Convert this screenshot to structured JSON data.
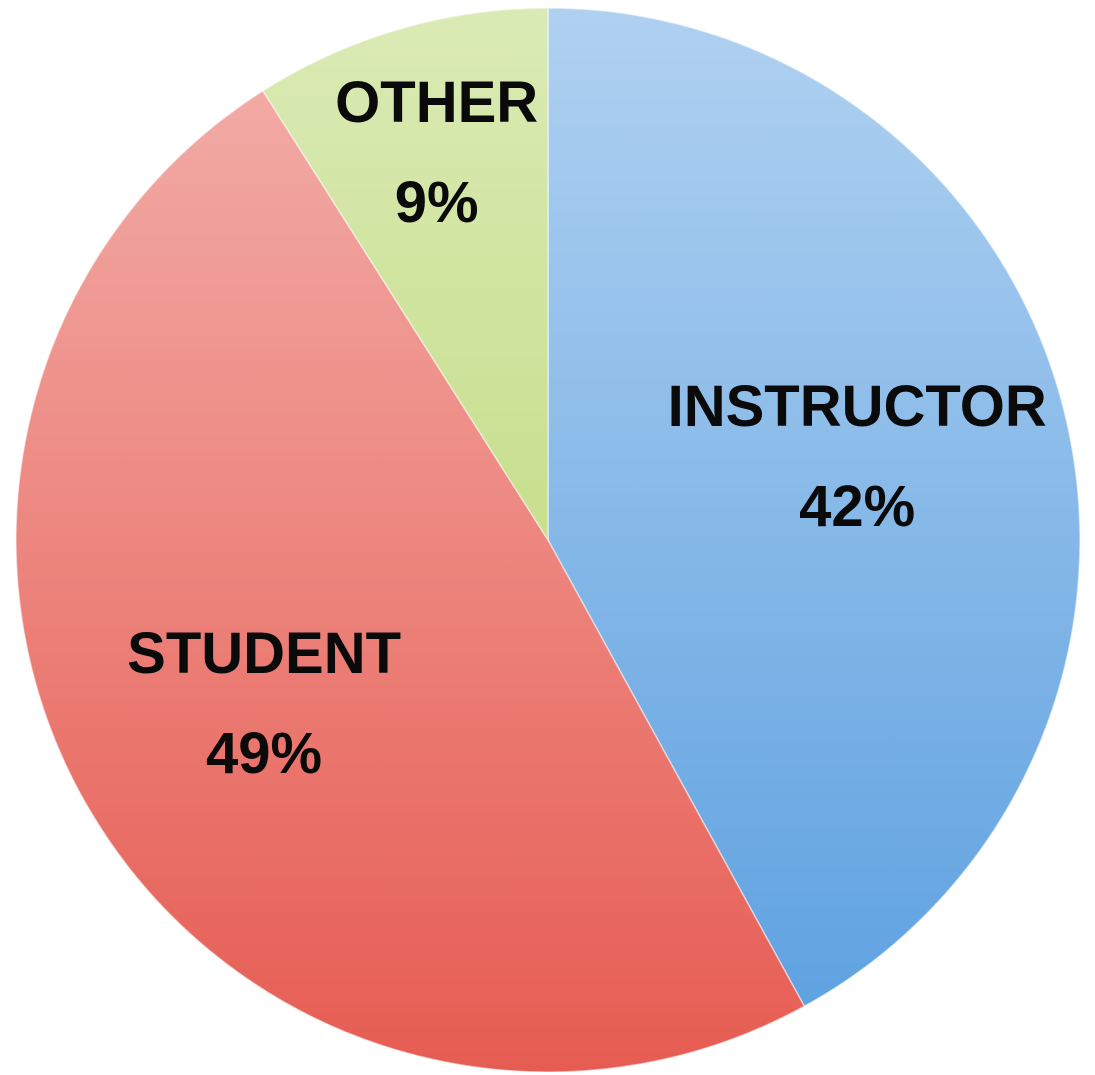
{
  "chart_data": {
    "type": "pie",
    "categories": [
      "INSTRUCTOR",
      "STUDENT",
      "OTHER"
    ],
    "values": [
      42,
      49,
      9
    ],
    "value_labels": [
      "42%",
      "49%",
      "9%"
    ],
    "colors": [
      "#5a9fe0",
      "#e65c52",
      "#b3d465"
    ]
  }
}
